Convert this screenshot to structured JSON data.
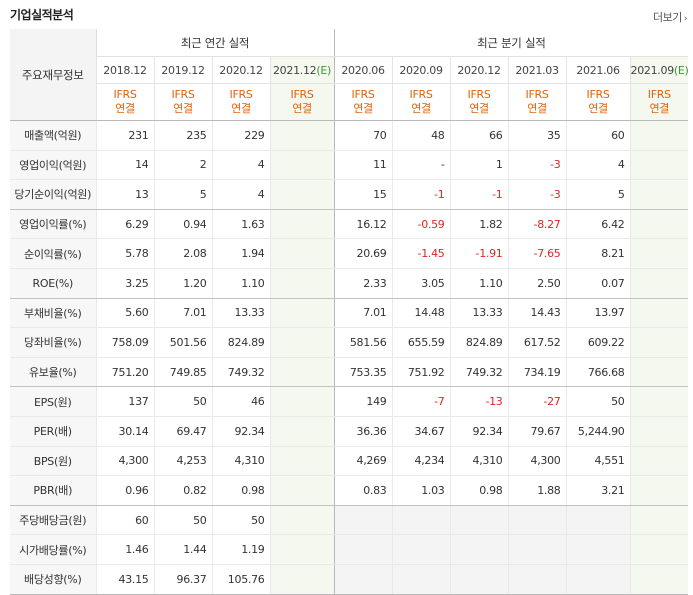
{
  "title": "기업실적분석",
  "more_label": "더보기",
  "row_header": "주요재무정보",
  "groups": {
    "annual": "최근 연간 실적",
    "quarter": "최근 분기 실적"
  },
  "periods": [
    "2018.12",
    "2019.12",
    "2020.12",
    "2021.12",
    "2020.06",
    "2020.09",
    "2020.12",
    "2021.03",
    "2021.06",
    "2021.09"
  ],
  "estimate_mark": "(E)",
  "ifrs_top": "IFRS",
  "ifrs_bottom": "연결",
  "rows": [
    {
      "label": "매출액(억원)",
      "values": [
        "231",
        "235",
        "229",
        "",
        "70",
        "48",
        "66",
        "35",
        "60",
        ""
      ]
    },
    {
      "label": "영업이익(억원)",
      "values": [
        "14",
        "2",
        "4",
        "",
        "11",
        "-",
        "1",
        "-3",
        "4",
        ""
      ]
    },
    {
      "label": "당기순이익(억원)",
      "values": [
        "13",
        "5",
        "4",
        "",
        "15",
        "-1",
        "-1",
        "-3",
        "5",
        ""
      ]
    },
    {
      "label": "영업이익률(%)",
      "values": [
        "6.29",
        "0.94",
        "1.63",
        "",
        "16.12",
        "-0.59",
        "1.82",
        "-8.27",
        "6.42",
        ""
      ]
    },
    {
      "label": "순이익률(%)",
      "values": [
        "5.78",
        "2.08",
        "1.94",
        "",
        "20.69",
        "-1.45",
        "-1.91",
        "-7.65",
        "8.21",
        ""
      ]
    },
    {
      "label": "ROE(%)",
      "values": [
        "3.25",
        "1.20",
        "1.10",
        "",
        "2.33",
        "3.05",
        "1.10",
        "2.50",
        "0.07",
        ""
      ]
    },
    {
      "label": "부채비율(%)",
      "values": [
        "5.60",
        "7.01",
        "13.33",
        "",
        "7.01",
        "14.48",
        "13.33",
        "14.43",
        "13.97",
        ""
      ]
    },
    {
      "label": "당좌비율(%)",
      "values": [
        "758.09",
        "501.56",
        "824.89",
        "",
        "581.56",
        "655.59",
        "824.89",
        "617.52",
        "609.22",
        ""
      ]
    },
    {
      "label": "유보율(%)",
      "values": [
        "751.20",
        "749.85",
        "749.32",
        "",
        "753.35",
        "751.92",
        "749.32",
        "734.19",
        "766.68",
        ""
      ]
    },
    {
      "label": "EPS(원)",
      "values": [
        "137",
        "50",
        "46",
        "",
        "149",
        "-7",
        "-13",
        "-27",
        "50",
        ""
      ]
    },
    {
      "label": "PER(배)",
      "values": [
        "30.14",
        "69.47",
        "92.34",
        "",
        "36.36",
        "34.67",
        "92.34",
        "79.67",
        "5,244.90",
        ""
      ]
    },
    {
      "label": "BPS(원)",
      "values": [
        "4,300",
        "4,253",
        "4,310",
        "",
        "4,269",
        "4,234",
        "4,310",
        "4,300",
        "4,551",
        ""
      ]
    },
    {
      "label": "PBR(배)",
      "values": [
        "0.96",
        "0.82",
        "0.98",
        "",
        "0.83",
        "1.03",
        "0.98",
        "1.88",
        "3.21",
        ""
      ]
    },
    {
      "label": "주당배당금(원)",
      "values": [
        "60",
        "50",
        "50",
        "",
        "",
        "",
        "",
        "",
        "",
        ""
      ]
    },
    {
      "label": "시가배당률(%)",
      "values": [
        "1.46",
        "1.44",
        "1.19",
        "",
        "",
        "",
        "",
        "",
        "",
        ""
      ]
    },
    {
      "label": "배당성향(%)",
      "values": [
        "43.15",
        "96.37",
        "105.76",
        "",
        "",
        "",
        "",
        "",
        "",
        ""
      ]
    }
  ]
}
